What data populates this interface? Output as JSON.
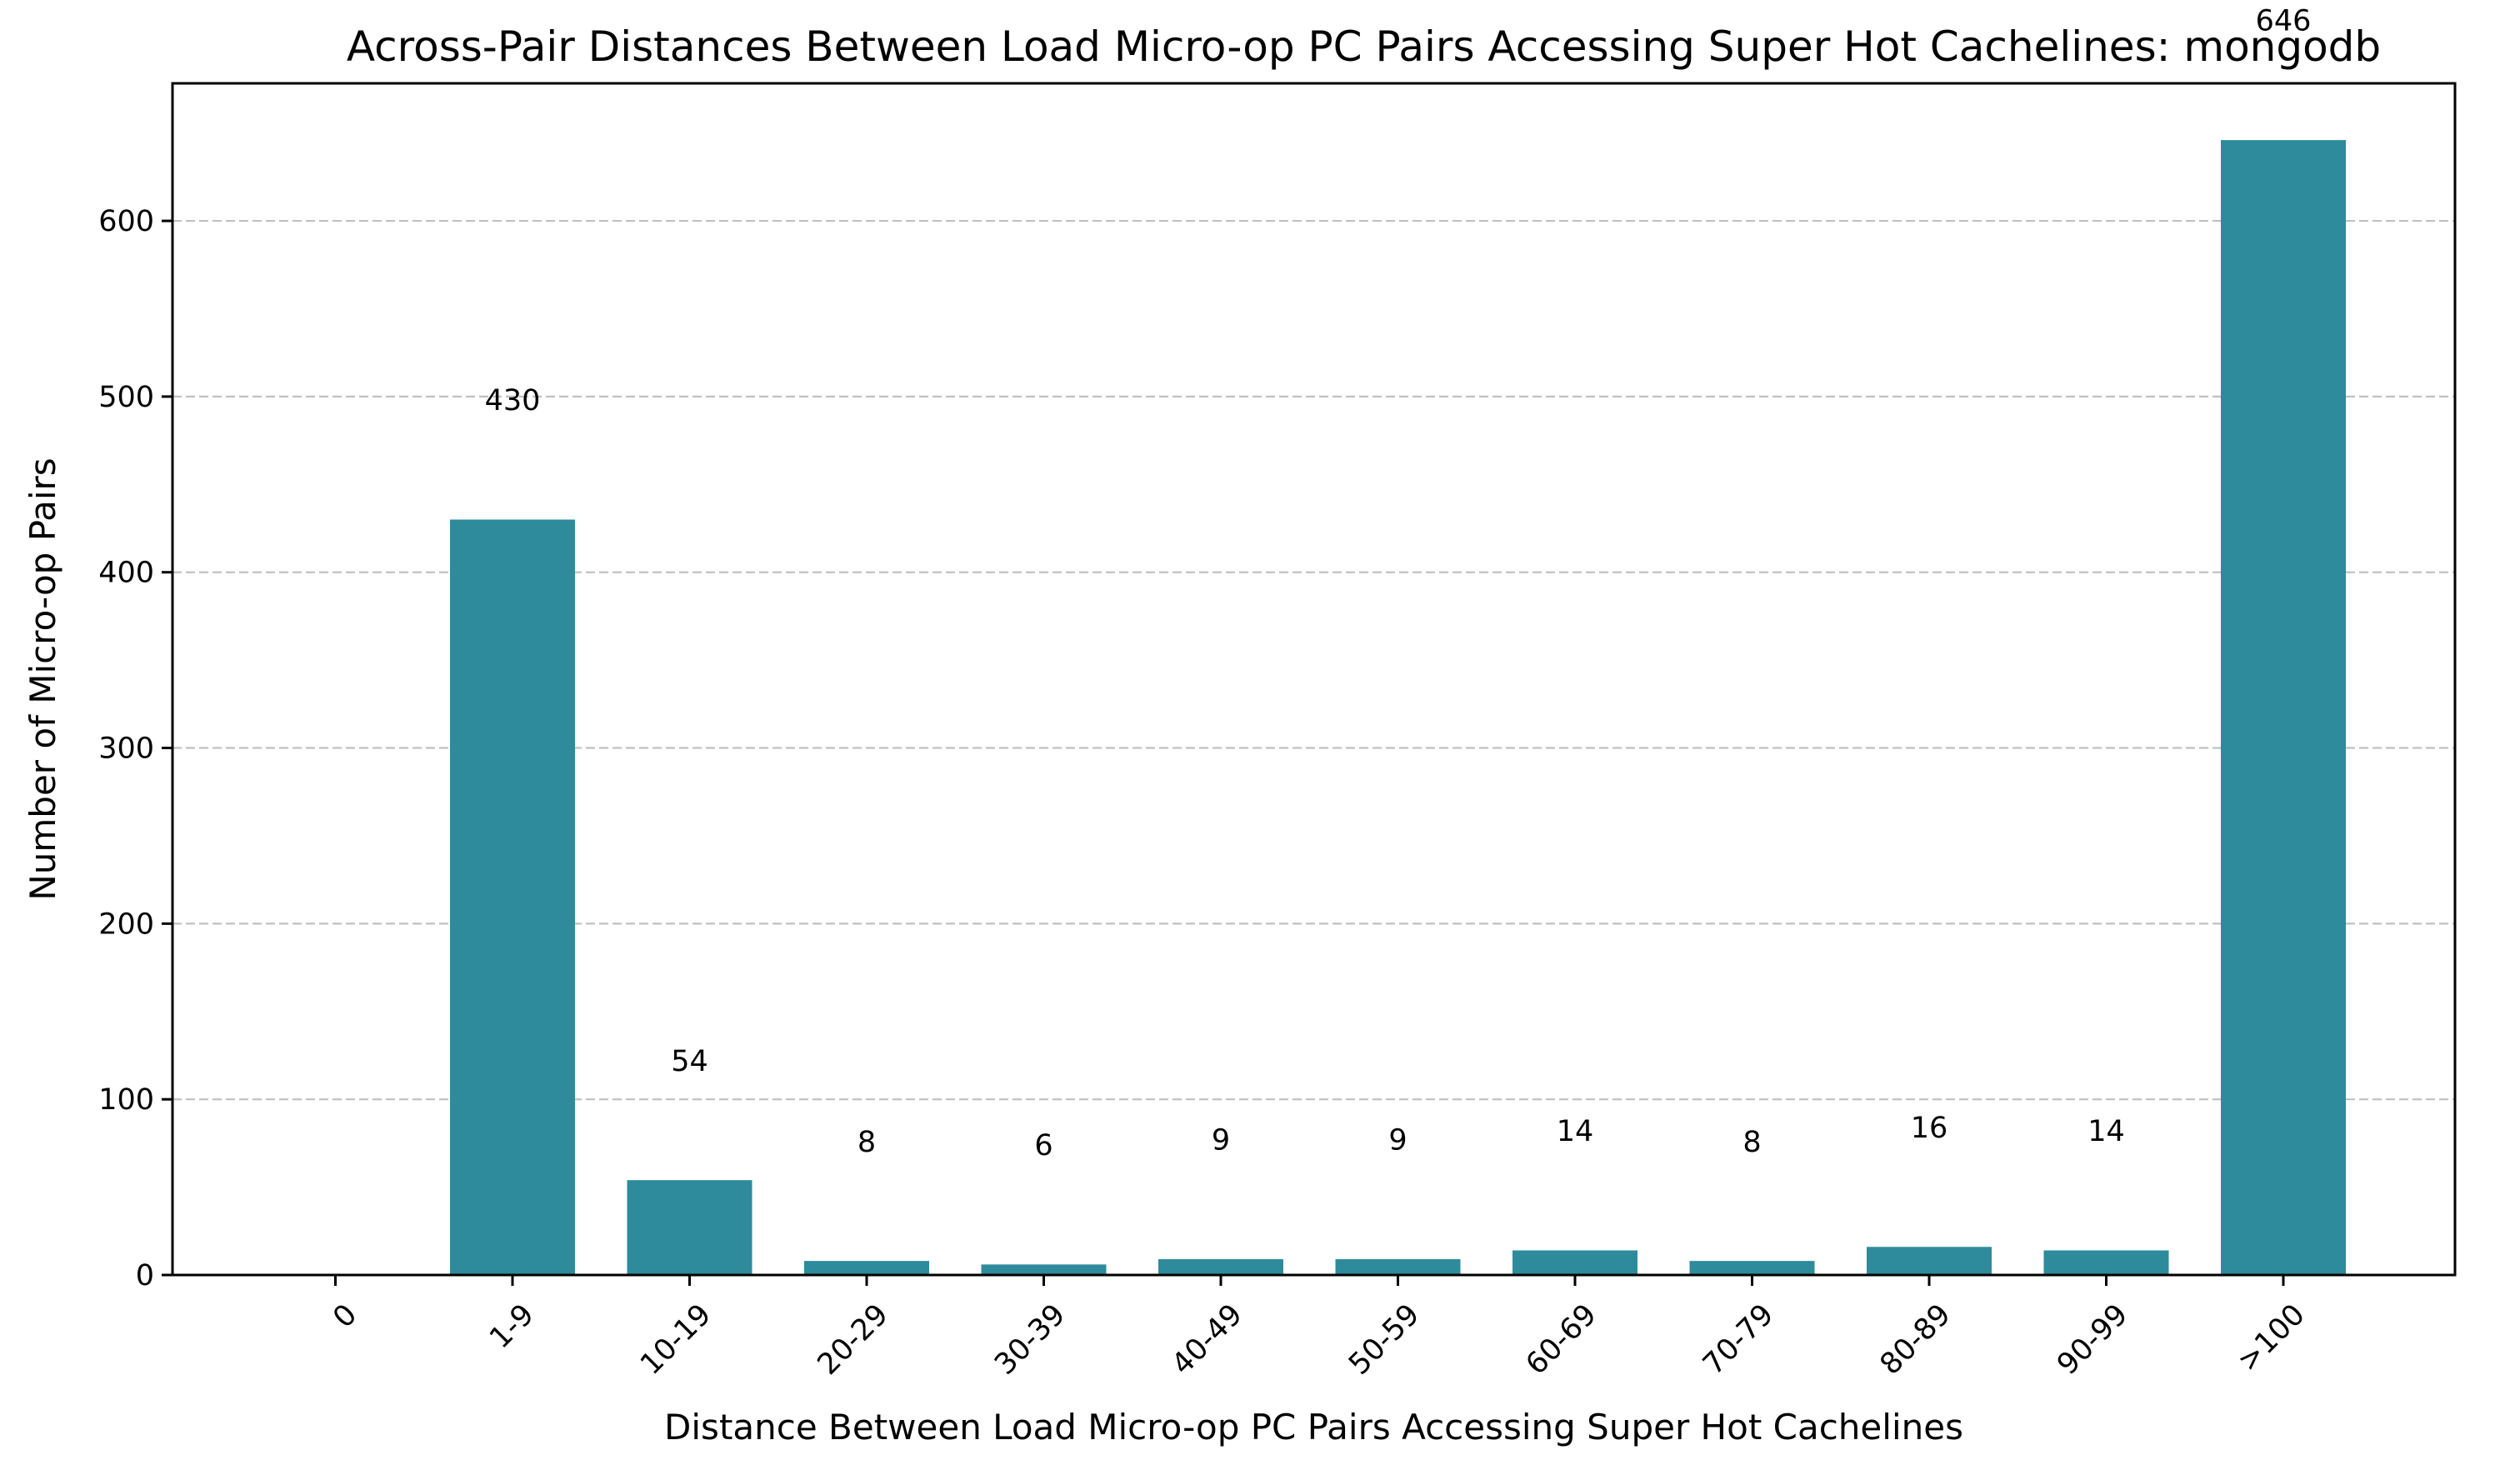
{
  "chart_data": {
    "type": "bar",
    "title": "Across-Pair Distances Between Load Micro-op PC Pairs Accessing Super Hot Cachelines: mongodb",
    "xlabel": "Distance Between Load Micro-op PC Pairs Accessing Super Hot Cachelines",
    "ylabel": "Number of Micro-op Pairs",
    "categories": [
      "0",
      "1-9",
      "10-19",
      "20-29",
      "30-39",
      "40-49",
      "50-59",
      "60-69",
      "70-79",
      "80-89",
      "90-99",
      ">100"
    ],
    "values": [
      0,
      430,
      54,
      8,
      6,
      9,
      9,
      14,
      8,
      16,
      14,
      646
    ],
    "data_labels": [
      "",
      "430",
      "54",
      "8",
      "6",
      "9",
      "9",
      "14",
      "8",
      "16",
      "14",
      "646"
    ],
    "ylim": [
      0,
      678.3
    ],
    "yticks": [
      0,
      100,
      200,
      300,
      400,
      500,
      600
    ],
    "ytick_labels": [
      "0",
      "100",
      "200",
      "300",
      "400",
      "500",
      "600"
    ],
    "grid": "y-dashed",
    "bar_color": "#2e8b9b",
    "grid_color": "#c0c0c0"
  }
}
